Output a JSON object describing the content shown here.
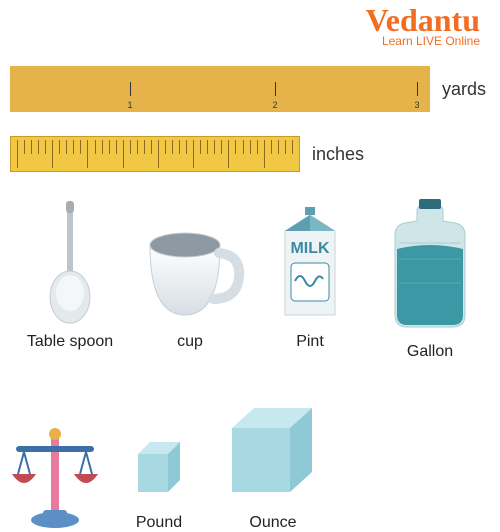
{
  "brand": {
    "name": "Vedantu",
    "tagline": "Learn LIVE Online",
    "color": "#f26d21"
  },
  "yards": {
    "label": "yards",
    "bar_color": "#e5b34a",
    "ticks": [
      1,
      2,
      3
    ]
  },
  "inches": {
    "label": "inches",
    "bar_color": "#f2c744",
    "border_color": "#c79a2a"
  },
  "volume": {
    "items": [
      {
        "label": "Table spoon"
      },
      {
        "label": "cup"
      },
      {
        "label": "Pint"
      },
      {
        "label": "Gallon"
      }
    ],
    "milk_text": "MILK",
    "colors": {
      "spoon_handle": "#bfc4c8",
      "spoon_bowl": "#e4e9ec",
      "cup_body_top": "#ffffff",
      "cup_body_bot": "#d7dee3",
      "cup_inner": "#8d9aa3",
      "milk_box": "#eef4f6",
      "milk_top": "#5b9fb0",
      "milk_text_color": "#3b8ba0",
      "gallon_body": "#cfe6e9",
      "gallon_water": "#3d98a6",
      "gallon_cap": "#2b6b7a"
    }
  },
  "weight": {
    "items": [
      {
        "label": "Pound"
      },
      {
        "label": "Ounce"
      }
    ],
    "colors": {
      "scale_pillar": "#e77a9d",
      "scale_beam": "#3b6fa5",
      "scale_pan": "#c24a54",
      "scale_base": "#5b8fc5",
      "cube_light": "#c8e8ef",
      "cube_mid": "#a8d8e2",
      "cube_dark": "#8fc9d6"
    }
  }
}
